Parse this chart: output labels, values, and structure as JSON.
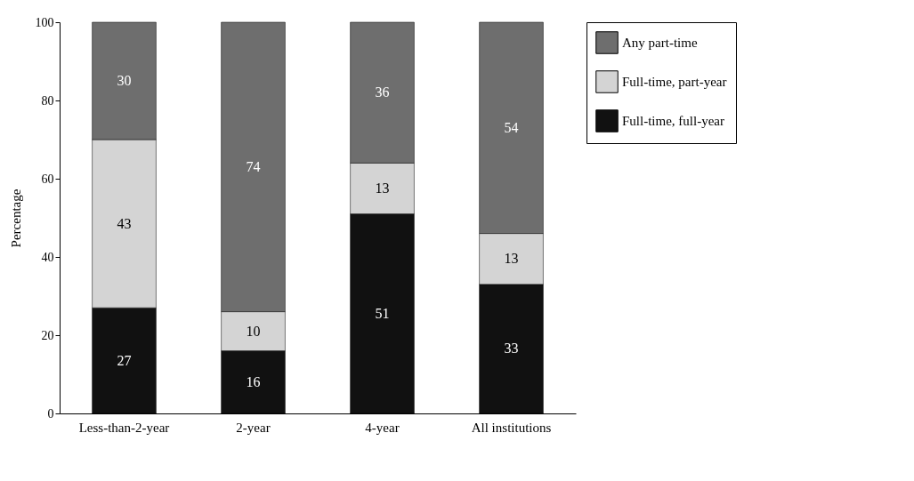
{
  "chart_data": {
    "type": "bar",
    "stacked": true,
    "ylabel": "Percentage",
    "categories": [
      "Less-than-2-year",
      "2-year",
      "4-year",
      "All institutions"
    ],
    "series": [
      {
        "name": "Full-time, full-year",
        "color": "#111111",
        "values": [
          27,
          16,
          51,
          33
        ]
      },
      {
        "name": "Full-time, part-year",
        "color": "#d4d4d4",
        "values": [
          43,
          10,
          13,
          13
        ]
      },
      {
        "name": "Any part-time",
        "color": "#6e6e6e",
        "values": [
          30,
          74,
          36,
          54
        ]
      }
    ],
    "ylim": [
      0,
      100
    ],
    "yticks": [
      0,
      20,
      40,
      60,
      80,
      100
    ],
    "grid": false,
    "legend": "top right",
    "data_labels": true
  }
}
